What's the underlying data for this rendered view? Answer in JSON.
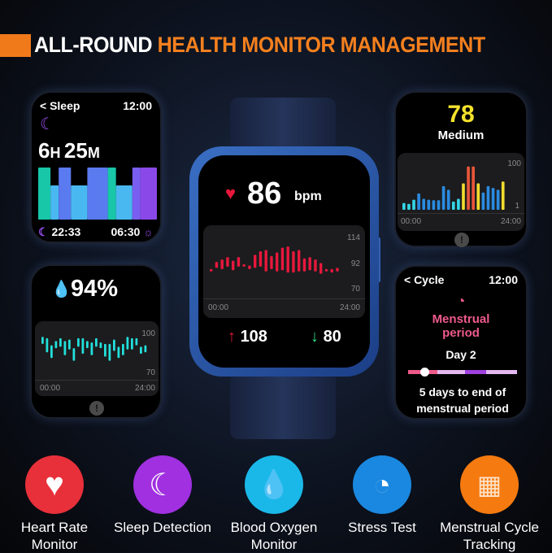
{
  "header": {
    "white": "ALL-ROUND",
    "orange": "HEALTH MONITOR MANAGEMENT"
  },
  "colors": {
    "accent": "#f07a1a",
    "heart": "#e8183c",
    "spo2": "#22e0dc",
    "menstrual": "#ee5a8a"
  },
  "sleep": {
    "back": "< Sleep",
    "time": "12:00",
    "hours": "6",
    "h": "H",
    "minutes": "25",
    "m": "M",
    "start": "22:33",
    "end": "06:30",
    "stages": [
      [
        1,
        3
      ],
      [
        2,
        2
      ],
      [
        3,
        3
      ],
      [
        2,
        4
      ],
      [
        3,
        5
      ],
      [
        1,
        2
      ],
      [
        2,
        4
      ],
      [
        4,
        2
      ],
      [
        5,
        4
      ]
    ]
  },
  "spo2": {
    "value": "94%",
    "y_max": "100",
    "y_min": "70",
    "x_start": "00:00",
    "x_end": "24:00",
    "bars": [
      [
        92,
        97
      ],
      [
        86,
        96
      ],
      [
        82,
        91
      ],
      [
        89,
        94
      ],
      [
        90,
        96
      ],
      [
        84,
        94
      ],
      [
        88,
        95
      ],
      [
        80,
        89
      ],
      [
        90,
        96
      ],
      [
        85,
        96
      ],
      [
        89,
        94
      ],
      [
        84,
        93
      ],
      [
        90,
        96
      ],
      [
        89,
        93
      ],
      [
        83,
        92
      ],
      [
        80,
        92
      ],
      [
        87,
        95
      ],
      [
        82,
        90
      ],
      [
        84,
        92
      ],
      [
        88,
        97
      ],
      [
        88,
        96
      ],
      [
        91,
        96
      ],
      [
        85,
        90
      ],
      [
        86,
        91
      ]
    ]
  },
  "heart": {
    "value": "86",
    "unit": "bpm",
    "y_max": "114",
    "y_mid": "92",
    "y_min": "70",
    "x_start": "00:00",
    "x_end": "24:00",
    "high": "108",
    "low": "80",
    "bars": [
      [
        86,
        88
      ],
      [
        89,
        94
      ],
      [
        88,
        96
      ],
      [
        90,
        98
      ],
      [
        87,
        95
      ],
      [
        90,
        98
      ],
      [
        90,
        92
      ],
      [
        88,
        91
      ],
      [
        89,
        100
      ],
      [
        90,
        103
      ],
      [
        86,
        104
      ],
      [
        88,
        99
      ],
      [
        86,
        102
      ],
      [
        87,
        106
      ],
      [
        85,
        107
      ],
      [
        85,
        103
      ],
      [
        86,
        104
      ],
      [
        86,
        97
      ],
      [
        87,
        98
      ],
      [
        86,
        96
      ],
      [
        84,
        93
      ],
      [
        86,
        88
      ],
      [
        85,
        88
      ],
      [
        86,
        89
      ]
    ]
  },
  "stress": {
    "value": "78",
    "level": "Medium",
    "y_max": "100",
    "y_min": "1",
    "x_start": "00:00",
    "x_end": "24:00",
    "bars": [
      [
        15,
        "#33d6e6"
      ],
      [
        13,
        "#33d6e6"
      ],
      [
        22,
        "#33d6e6"
      ],
      [
        36,
        "#2a8be0"
      ],
      [
        24,
        "#2a8be0"
      ],
      [
        22,
        "#2a8be0"
      ],
      [
        21,
        "#2a8be0"
      ],
      [
        21,
        "#2a8be0"
      ],
      [
        52,
        "#2a8be0"
      ],
      [
        44,
        "#2a8be0"
      ],
      [
        18,
        "#33d6e6"
      ],
      [
        24,
        "#33d6e6"
      ],
      [
        58,
        "#f2dc2e"
      ],
      [
        95,
        "#e8563a"
      ],
      [
        95,
        "#e8563a"
      ],
      [
        58,
        "#f2dc2e"
      ],
      [
        38,
        "#2a8be0"
      ],
      [
        52,
        "#2a8be0"
      ],
      [
        48,
        "#2a8be0"
      ],
      [
        44,
        "#2a8be0"
      ],
      [
        62,
        "#f2dc2e"
      ]
    ]
  },
  "cycle": {
    "back": "< Cycle",
    "time": "12:00",
    "title": "Menstrual period",
    "day": "Day 2",
    "remaining": "5 days to end of menstrual period",
    "segments": [
      [
        "#ee5a8a",
        0.27
      ],
      [
        "#e4b8f0",
        0.25
      ],
      [
        "#a040e0",
        0.2
      ],
      [
        "#e4b8f0",
        0.28
      ]
    ],
    "progress": 0.15
  },
  "features": [
    {
      "label": "Heart Rate Monitor",
      "color": "#e8303a",
      "icon": "heart-icon"
    },
    {
      "label": "Sleep Detection",
      "color": "#a030e0",
      "icon": "moon-icon"
    },
    {
      "label": "Blood Oxygen Monitor",
      "color": "#1ab8e8",
      "icon": "water-drop-icon"
    },
    {
      "label": "Stress Test",
      "color": "#1a88e0",
      "icon": "gauge-icon"
    },
    {
      "label": "Menstrual Cycle Tracking",
      "color": "#f57a10",
      "icon": "calendar-clock-icon"
    }
  ]
}
